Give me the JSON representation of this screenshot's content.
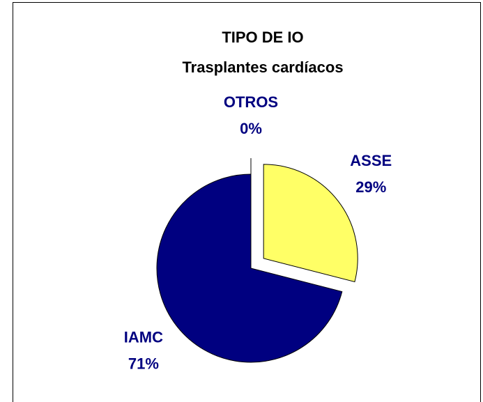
{
  "chart_data": {
    "type": "pie",
    "title": "TIPO DE IO",
    "subtitle": "Trasplantes cardíacos",
    "categories": [
      "OTROS",
      "ASSE",
      "IAMC"
    ],
    "values": [
      0,
      29,
      71
    ],
    "value_labels": [
      "0%",
      "29%",
      "71%"
    ],
    "colors": [
      "#ffffff",
      "#ffff66",
      "#000080"
    ],
    "explode": [
      true,
      true,
      false
    ]
  }
}
